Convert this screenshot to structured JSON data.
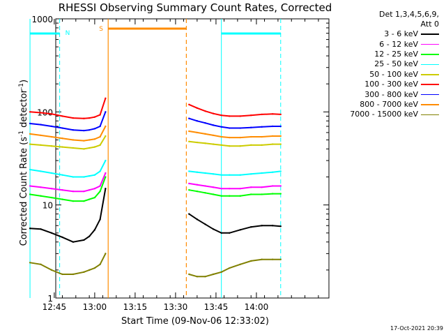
{
  "chart_data": {
    "type": "line",
    "title": "RHESSI Observing Summary Count Rates, Corrected",
    "xlabel": "Start Time (09-Nov-06 12:33:02)",
    "ylabel_parts": [
      "Corrected Count Rate (s",
      "-1",
      " detector",
      "-1",
      ")"
    ],
    "y_scale": "log",
    "ylim": [
      1,
      1000
    ],
    "y_ticks": [
      1,
      10,
      100,
      1000
    ],
    "y_tick_labels": [
      "1",
      "10",
      "100",
      "1000"
    ],
    "x_ticks": [
      "12:45",
      "13:00",
      "13:15",
      "13:30",
      "13:45",
      "14:00"
    ],
    "x_range_minutes": [
      12.55,
      113.9
    ],
    "series": [
      {
        "name": "3 - 6 keV",
        "color": "#000000",
        "x": [
          "12:36",
          "12:40",
          "12:44",
          "12:48",
          "12:52",
          "12:56",
          "12:58",
          "13:00",
          "13:02",
          "13:04",
          "13:35",
          "13:38",
          "13:41",
          "13:44",
          "13:47",
          "13:50",
          "13:54",
          "13:58",
          "14:02",
          "14:06",
          "14:09"
        ],
        "values": [
          5.6,
          5.5,
          5.0,
          4.5,
          4.0,
          4.2,
          4.6,
          5.4,
          7.0,
          15.0,
          8.0,
          7.0,
          6.2,
          5.5,
          5.0,
          5.0,
          5.4,
          5.8,
          6.0,
          6.0,
          5.9
        ]
      },
      {
        "name": "6 - 12 keV",
        "color": "#ff00ff",
        "x": [
          "12:36",
          "12:40",
          "12:44",
          "12:48",
          "12:52",
          "12:56",
          "12:58",
          "13:00",
          "13:02",
          "13:04",
          "13:35",
          "13:38",
          "13:41",
          "13:44",
          "13:47",
          "13:50",
          "13:54",
          "13:58",
          "14:02",
          "14:06",
          "14:09"
        ],
        "values": [
          16,
          15.5,
          15,
          14.5,
          14,
          14,
          14.5,
          15,
          16,
          22,
          17,
          16.5,
          16,
          15.5,
          15,
          15,
          15,
          15.5,
          15.5,
          16,
          16
        ]
      },
      {
        "name": "12 - 25 keV",
        "color": "#00ff00",
        "x": [
          "12:36",
          "12:40",
          "12:44",
          "12:48",
          "12:52",
          "12:56",
          "12:58",
          "13:00",
          "13:02",
          "13:04",
          "13:35",
          "13:38",
          "13:41",
          "13:44",
          "13:47",
          "13:50",
          "13:54",
          "13:58",
          "14:02",
          "14:06",
          "14:09"
        ],
        "values": [
          13,
          12.5,
          12,
          11.5,
          11,
          11,
          11.5,
          12,
          14,
          20,
          14.5,
          14,
          13.5,
          13,
          12.5,
          12.5,
          12.5,
          13,
          13,
          13.2,
          13.2
        ]
      },
      {
        "name": "25 - 50 keV",
        "color": "#00ffff",
        "x": [
          "12:36",
          "12:40",
          "12:44",
          "12:48",
          "12:52",
          "12:56",
          "12:58",
          "13:00",
          "13:02",
          "13:04",
          "13:35",
          "13:38",
          "13:41",
          "13:44",
          "13:47",
          "13:50",
          "13:54",
          "13:58",
          "14:02",
          "14:06",
          "14:09"
        ],
        "values": [
          24,
          23,
          22,
          21,
          20,
          20,
          20.5,
          21,
          23,
          30,
          23,
          22.5,
          22,
          21.5,
          21,
          21,
          21,
          21.5,
          22,
          22.5,
          23
        ]
      },
      {
        "name": "50 - 100 keV",
        "color": "#cccc00",
        "x": [
          "12:36",
          "12:40",
          "12:44",
          "12:48",
          "12:52",
          "12:56",
          "12:58",
          "13:00",
          "13:02",
          "13:04",
          "13:35",
          "13:38",
          "13:41",
          "13:44",
          "13:47",
          "13:50",
          "13:54",
          "13:58",
          "14:02",
          "14:06",
          "14:09"
        ],
        "values": [
          45,
          44,
          43,
          42,
          41,
          40,
          41,
          42,
          44,
          55,
          48,
          47,
          46,
          45,
          44,
          43,
          43,
          44,
          44,
          45,
          45
        ]
      },
      {
        "name": "100 - 300 keV",
        "color": "#ff0000",
        "x": [
          "12:36",
          "12:40",
          "12:44",
          "12:48",
          "12:52",
          "12:56",
          "12:58",
          "13:00",
          "13:02",
          "13:04",
          "13:35",
          "13:38",
          "13:41",
          "13:44",
          "13:47",
          "13:50",
          "13:54",
          "13:58",
          "14:02",
          "14:06",
          "14:09"
        ],
        "values": [
          100,
          98,
          95,
          90,
          86,
          85,
          86,
          88,
          93,
          140,
          120,
          110,
          102,
          96,
          92,
          90,
          90,
          92,
          94,
          95,
          94
        ]
      },
      {
        "name": "300 - 800 keV",
        "color": "#0000ff",
        "x": [
          "12:36",
          "12:40",
          "12:44",
          "12:48",
          "12:52",
          "12:56",
          "12:58",
          "13:00",
          "13:02",
          "13:04",
          "13:35",
          "13:38",
          "13:41",
          "13:44",
          "13:47",
          "13:50",
          "13:54",
          "13:58",
          "14:02",
          "14:06",
          "14:09"
        ],
        "values": [
          75,
          73,
          70,
          67,
          64,
          63,
          64,
          66,
          70,
          100,
          85,
          80,
          76,
          72,
          69,
          67,
          67,
          68,
          69,
          70,
          70
        ]
      },
      {
        "name": "800 - 7000 keV",
        "color": "#ff8c00",
        "x": [
          "12:36",
          "12:40",
          "12:44",
          "12:48",
          "12:52",
          "12:56",
          "12:58",
          "13:00",
          "13:02",
          "13:04",
          "13:35",
          "13:38",
          "13:41",
          "13:44",
          "13:47",
          "13:50",
          "13:54",
          "13:58",
          "14:02",
          "14:06",
          "14:09"
        ],
        "values": [
          58,
          56,
          54,
          52,
          50,
          49,
          50,
          51,
          54,
          70,
          62,
          60,
          58,
          56,
          54,
          53,
          53,
          54,
          54,
          55,
          55
        ]
      },
      {
        "name": "7000 - 15000 keV",
        "color": "#808000",
        "x": [
          "12:36",
          "12:40",
          "12:44",
          "12:48",
          "12:52",
          "12:56",
          "12:58",
          "13:00",
          "13:02",
          "13:04",
          "13:35",
          "13:38",
          "13:41",
          "13:44",
          "13:47",
          "13:50",
          "13:54",
          "13:58",
          "14:02",
          "14:06",
          "14:09"
        ],
        "values": [
          2.4,
          2.3,
          2.0,
          1.8,
          1.8,
          1.9,
          2.0,
          2.1,
          2.3,
          3.0,
          1.8,
          1.7,
          1.7,
          1.8,
          1.9,
          2.1,
          2.3,
          2.5,
          2.6,
          2.6,
          2.6
        ]
      }
    ],
    "annotations": {
      "night_label": "N",
      "saa_label": "S",
      "night_color": "#00ffff",
      "saa_color": "#ff8c00",
      "night_bars": [
        [
          "12:36",
          "12:47"
        ],
        [
          "13:47",
          "14:09"
        ]
      ],
      "saa_bar": [
        "13:05",
        "13:34"
      ],
      "night_solid_lines": [
        "12:36",
        "13:47"
      ],
      "night_dashed_lines": [
        "12:47",
        "14:09"
      ],
      "saa_solid_line": "13:05",
      "saa_dashed_line": "13:34"
    }
  },
  "legend": {
    "header": [
      "Det 1,3,4,5,6,9,",
      "Att 0"
    ]
  },
  "timestamp": "17-Oct-2021 20:39"
}
